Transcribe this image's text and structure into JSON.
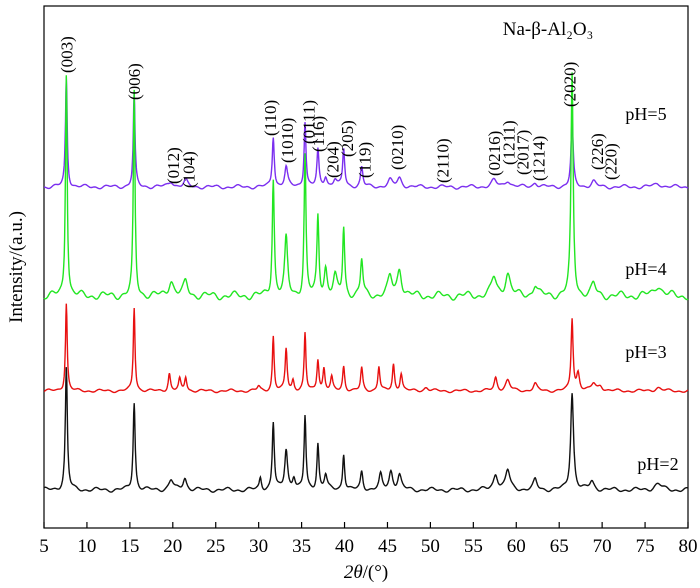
{
  "chart_data": {
    "type": "line",
    "title": "Na-β-Al₂O₃",
    "xlabel_var": "2θ",
    "xlabel_unit": "/(°)",
    "ylabel": "Intensity/(a.u.)",
    "xlim": [
      5,
      80
    ],
    "xticks": [
      5,
      10,
      15,
      20,
      25,
      30,
      35,
      40,
      45,
      50,
      55,
      60,
      65,
      70,
      75,
      80
    ],
    "grid": false,
    "legend": "none",
    "series": [
      {
        "name": "pH=5",
        "color": "#7b2fef",
        "peaks": [
          [
            7.6,
            1.0,
            0.12
          ],
          [
            15.5,
            0.85,
            0.12
          ],
          [
            19.8,
            0.05,
            0.35
          ],
          [
            21.5,
            0.06,
            0.25
          ],
          [
            31.7,
            0.46,
            0.14
          ],
          [
            33.2,
            0.18,
            0.2
          ],
          [
            35.4,
            0.6,
            0.13
          ],
          [
            36.9,
            0.33,
            0.14
          ],
          [
            37.8,
            0.09,
            0.2
          ],
          [
            38.9,
            0.07,
            0.25
          ],
          [
            39.9,
            0.34,
            0.14
          ],
          [
            42.0,
            0.18,
            0.16
          ],
          [
            45.3,
            0.06,
            0.3
          ],
          [
            46.4,
            0.08,
            0.3
          ],
          [
            57.4,
            0.06,
            0.35
          ],
          [
            59.0,
            0.06,
            0.35
          ],
          [
            62.2,
            0.04,
            0.3
          ],
          [
            66.5,
            0.6,
            0.15
          ],
          [
            69.0,
            0.05,
            0.3
          ],
          [
            76.5,
            0.03,
            0.5
          ]
        ]
      },
      {
        "name": "pH=4",
        "color": "#22e622",
        "peaks": [
          [
            7.6,
            1.0,
            0.12
          ],
          [
            15.5,
            0.9,
            0.12
          ],
          [
            19.8,
            0.07,
            0.35
          ],
          [
            21.5,
            0.06,
            0.3
          ],
          [
            31.7,
            0.52,
            0.14
          ],
          [
            33.2,
            0.25,
            0.2
          ],
          [
            35.4,
            0.62,
            0.13
          ],
          [
            36.9,
            0.35,
            0.14
          ],
          [
            37.8,
            0.12,
            0.2
          ],
          [
            38.9,
            0.08,
            0.25
          ],
          [
            39.9,
            0.3,
            0.14
          ],
          [
            42.0,
            0.16,
            0.16
          ],
          [
            45.3,
            0.08,
            0.3
          ],
          [
            46.4,
            0.12,
            0.3
          ],
          [
            57.4,
            0.08,
            0.35
          ],
          [
            59.0,
            0.1,
            0.35
          ],
          [
            62.2,
            0.05,
            0.3
          ],
          [
            66.5,
            0.98,
            0.15
          ],
          [
            69.0,
            0.05,
            0.3
          ],
          [
            76.5,
            0.05,
            0.5
          ]
        ]
      },
      {
        "name": "pH=3",
        "color": "#e81010",
        "peaks": [
          [
            7.6,
            1.0,
            0.12
          ],
          [
            15.5,
            0.95,
            0.12
          ],
          [
            19.6,
            0.2,
            0.15
          ],
          [
            20.8,
            0.13,
            0.15
          ],
          [
            21.5,
            0.16,
            0.15
          ],
          [
            30.0,
            0.05,
            0.2
          ],
          [
            31.7,
            0.62,
            0.12
          ],
          [
            33.2,
            0.48,
            0.14
          ],
          [
            34.0,
            0.12,
            0.15
          ],
          [
            35.4,
            0.65,
            0.12
          ],
          [
            36.9,
            0.36,
            0.14
          ],
          [
            37.6,
            0.25,
            0.14
          ],
          [
            38.5,
            0.15,
            0.15
          ],
          [
            39.9,
            0.28,
            0.14
          ],
          [
            42.0,
            0.26,
            0.14
          ],
          [
            44.0,
            0.28,
            0.14
          ],
          [
            45.7,
            0.3,
            0.14
          ],
          [
            46.6,
            0.2,
            0.16
          ],
          [
            49.5,
            0.04,
            0.3
          ],
          [
            57.6,
            0.15,
            0.2
          ],
          [
            59.0,
            0.12,
            0.3
          ],
          [
            62.2,
            0.08,
            0.25
          ],
          [
            66.5,
            0.82,
            0.14
          ],
          [
            67.2,
            0.2,
            0.2
          ],
          [
            69.0,
            0.08,
            0.3
          ],
          [
            69.8,
            0.06,
            0.3
          ],
          [
            76.5,
            0.04,
            0.4
          ]
        ]
      },
      {
        "name": "pH=2",
        "color": "#111111",
        "peaks": [
          [
            7.6,
            1.0,
            0.14
          ],
          [
            15.5,
            0.72,
            0.14
          ],
          [
            19.8,
            0.08,
            0.3
          ],
          [
            21.4,
            0.1,
            0.25
          ],
          [
            30.2,
            0.1,
            0.15
          ],
          [
            31.7,
            0.55,
            0.14
          ],
          [
            33.2,
            0.33,
            0.2
          ],
          [
            34.1,
            0.1,
            0.2
          ],
          [
            35.4,
            0.6,
            0.13
          ],
          [
            36.9,
            0.38,
            0.14
          ],
          [
            37.8,
            0.12,
            0.2
          ],
          [
            39.9,
            0.3,
            0.14
          ],
          [
            42.0,
            0.15,
            0.16
          ],
          [
            44.2,
            0.12,
            0.2
          ],
          [
            45.4,
            0.15,
            0.25
          ],
          [
            46.4,
            0.12,
            0.25
          ],
          [
            57.6,
            0.13,
            0.3
          ],
          [
            59.0,
            0.16,
            0.3
          ],
          [
            62.2,
            0.08,
            0.25
          ],
          [
            66.5,
            0.8,
            0.2
          ],
          [
            68.8,
            0.07,
            0.3
          ],
          [
            76.5,
            0.05,
            0.5
          ]
        ]
      }
    ],
    "peak_labels": [
      {
        "text": "(003)",
        "x": 7.6
      },
      {
        "text": "(006)",
        "x": 15.5
      },
      {
        "text": "(012)",
        "x": 20.0
      },
      {
        "text": "(104)",
        "x": 21.8
      },
      {
        "text": "(110)",
        "x": 31.3
      },
      {
        "text": "(1010)",
        "x": 33.3
      },
      {
        "text": "(0111)",
        "x": 35.8
      },
      {
        "text": "(116)",
        "x": 36.9
      },
      {
        "text": "(204)",
        "x": 38.6
      },
      {
        "text": "(205)",
        "x": 40.3
      },
      {
        "text": "(119)",
        "x": 42.3
      },
      {
        "text": "(0210)",
        "x": 46.1
      },
      {
        "text": "(2110)",
        "x": 51.4
      },
      {
        "text": "(0216)",
        "x": 57.4
      },
      {
        "text": "(1211)",
        "x": 59.1
      },
      {
        "text": "(2017)",
        "x": 60.7
      },
      {
        "text": "(1214)",
        "x": 62.6
      },
      {
        "text": "(2020)",
        "x": 66.2
      },
      {
        "text": "(226)",
        "x": 69.4
      },
      {
        "text": "(220)",
        "x": 71.0
      }
    ]
  }
}
